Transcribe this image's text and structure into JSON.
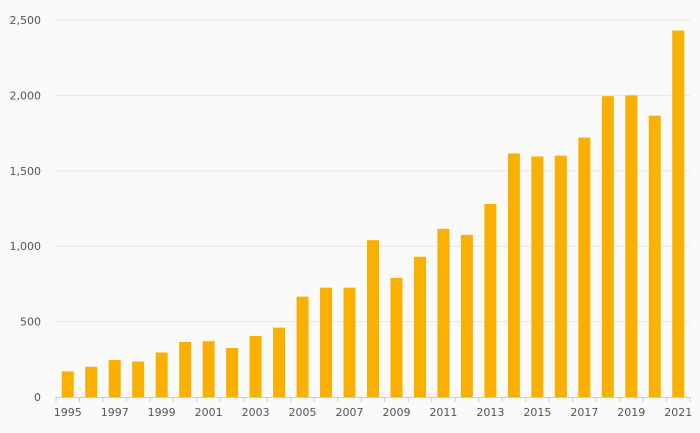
{
  "chart_data": {
    "type": "bar",
    "title": "",
    "xlabel": "",
    "ylabel": "",
    "ylim": [
      0,
      2500
    ],
    "yticks": [
      0,
      500,
      1000,
      1500,
      2000,
      2500
    ],
    "ytick_labels": [
      "0",
      "500",
      "1,000",
      "1,500",
      "2,000",
      "2,500"
    ],
    "categories": [
      "1995",
      "1996",
      "1997",
      "1998",
      "1999",
      "2000",
      "2001",
      "2002",
      "2003",
      "2004",
      "2005",
      "2006",
      "2007",
      "2008",
      "2009",
      "2010",
      "2011",
      "2012",
      "2013",
      "2014",
      "2015",
      "2016",
      "2017",
      "2018",
      "2019",
      "2020",
      "2021"
    ],
    "xtick_labels": [
      "1995",
      "",
      "1997",
      "",
      "1999",
      "",
      "2001",
      "",
      "2003",
      "",
      "2005",
      "",
      "2007",
      "",
      "2009",
      "",
      "2011",
      "",
      "2013",
      "",
      "2015",
      "",
      "2017",
      "",
      "2019",
      "",
      "2021"
    ],
    "values": [
      170,
      200,
      245,
      235,
      295,
      365,
      370,
      325,
      405,
      460,
      665,
      725,
      725,
      1040,
      790,
      930,
      1115,
      1075,
      1280,
      1615,
      1595,
      1600,
      1720,
      1995,
      2000,
      1865,
      2430
    ],
    "bar_color": "#f9b000",
    "grid": true
  }
}
